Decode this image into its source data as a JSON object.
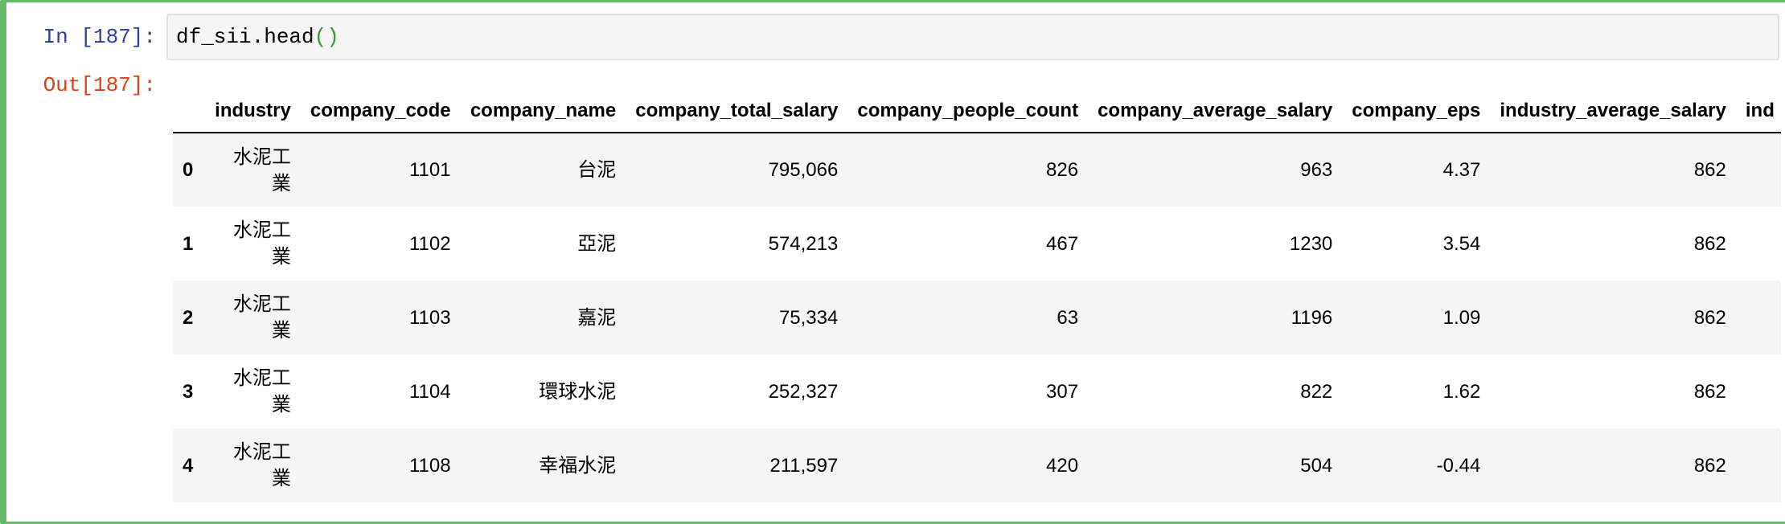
{
  "prompts": {
    "in_label": "In [187]:",
    "out_label": "Out[187]:"
  },
  "input": {
    "code_text": "df_sii.head",
    "code_parens": "()"
  },
  "table": {
    "columns": [
      "",
      "industry",
      "company_code",
      "company_name",
      "company_total_salary",
      "company_people_count",
      "company_average_salary",
      "company_eps",
      "industry_average_salary",
      "ind"
    ],
    "rows": [
      {
        "index": "0",
        "industry": "水泥工業",
        "company_code": "1101",
        "company_name": "台泥",
        "company_total_salary": "795,066",
        "company_people_count": "826",
        "company_average_salary": "963",
        "company_eps": "4.37",
        "industry_average_salary": "862"
      },
      {
        "index": "1",
        "industry": "水泥工業",
        "company_code": "1102",
        "company_name": "亞泥",
        "company_total_salary": "574,213",
        "company_people_count": "467",
        "company_average_salary": "1230",
        "company_eps": "3.54",
        "industry_average_salary": "862"
      },
      {
        "index": "2",
        "industry": "水泥工業",
        "company_code": "1103",
        "company_name": "嘉泥",
        "company_total_salary": "75,334",
        "company_people_count": "63",
        "company_average_salary": "1196",
        "company_eps": "1.09",
        "industry_average_salary": "862"
      },
      {
        "index": "3",
        "industry": "水泥工業",
        "company_code": "1104",
        "company_name": "環球水泥",
        "company_total_salary": "252,327",
        "company_people_count": "307",
        "company_average_salary": "822",
        "company_eps": "1.62",
        "industry_average_salary": "862"
      },
      {
        "index": "4",
        "industry": "水泥工業",
        "company_code": "1108",
        "company_name": "幸福水泥",
        "company_total_salary": "211,597",
        "company_people_count": "420",
        "company_average_salary": "504",
        "company_eps": "-0.44",
        "industry_average_salary": "862"
      }
    ]
  },
  "colors": {
    "cell_border": "#66bb6a",
    "in_prompt": "#303f9f",
    "out_prompt": "#d84315",
    "input_background": "#f5f5f5",
    "stripe": "#f5f5f5",
    "paren": "#2e9a2e"
  }
}
